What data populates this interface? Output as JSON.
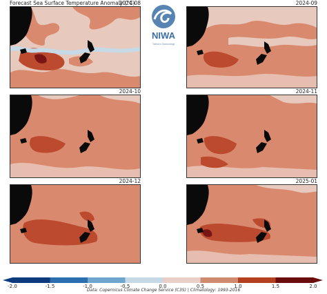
{
  "title": "Forecast Sea Surface Temperature Anomaly (°C)",
  "panels": [
    {
      "label": "2024-08"
    },
    {
      "label": "2024-09"
    },
    {
      "label": "2024-10"
    },
    {
      "label": "2024-11"
    },
    {
      "label": "2024-12"
    },
    {
      "label": "2025-01"
    }
  ],
  "logo": {
    "text": "NIWA",
    "subtext": "Taihoro Nukurangi"
  },
  "colorbar": {
    "ticks": [
      "-2.0",
      "-1.5",
      "-1.0",
      "-0.5",
      "0.0",
      "0.5",
      "1.0",
      "1.5",
      "2.0"
    ],
    "colors": [
      "#0b3a7e",
      "#2c6fb0",
      "#6fa6cf",
      "#c6d9e6",
      "#e9cfc7",
      "#d08a6e",
      "#b5401f",
      "#6b0d0d"
    ]
  },
  "credit": "Data: Copernicus Climate Change Service (C3S) | Climatology: 1993-2016",
  "colors": {
    "land": "#0a0a0a",
    "pale": "#e8c9be",
    "mid": "#d98a6e",
    "strong": "#bb4a2e",
    "deep": "#7a1515",
    "blue": "#c5d9e6"
  }
}
